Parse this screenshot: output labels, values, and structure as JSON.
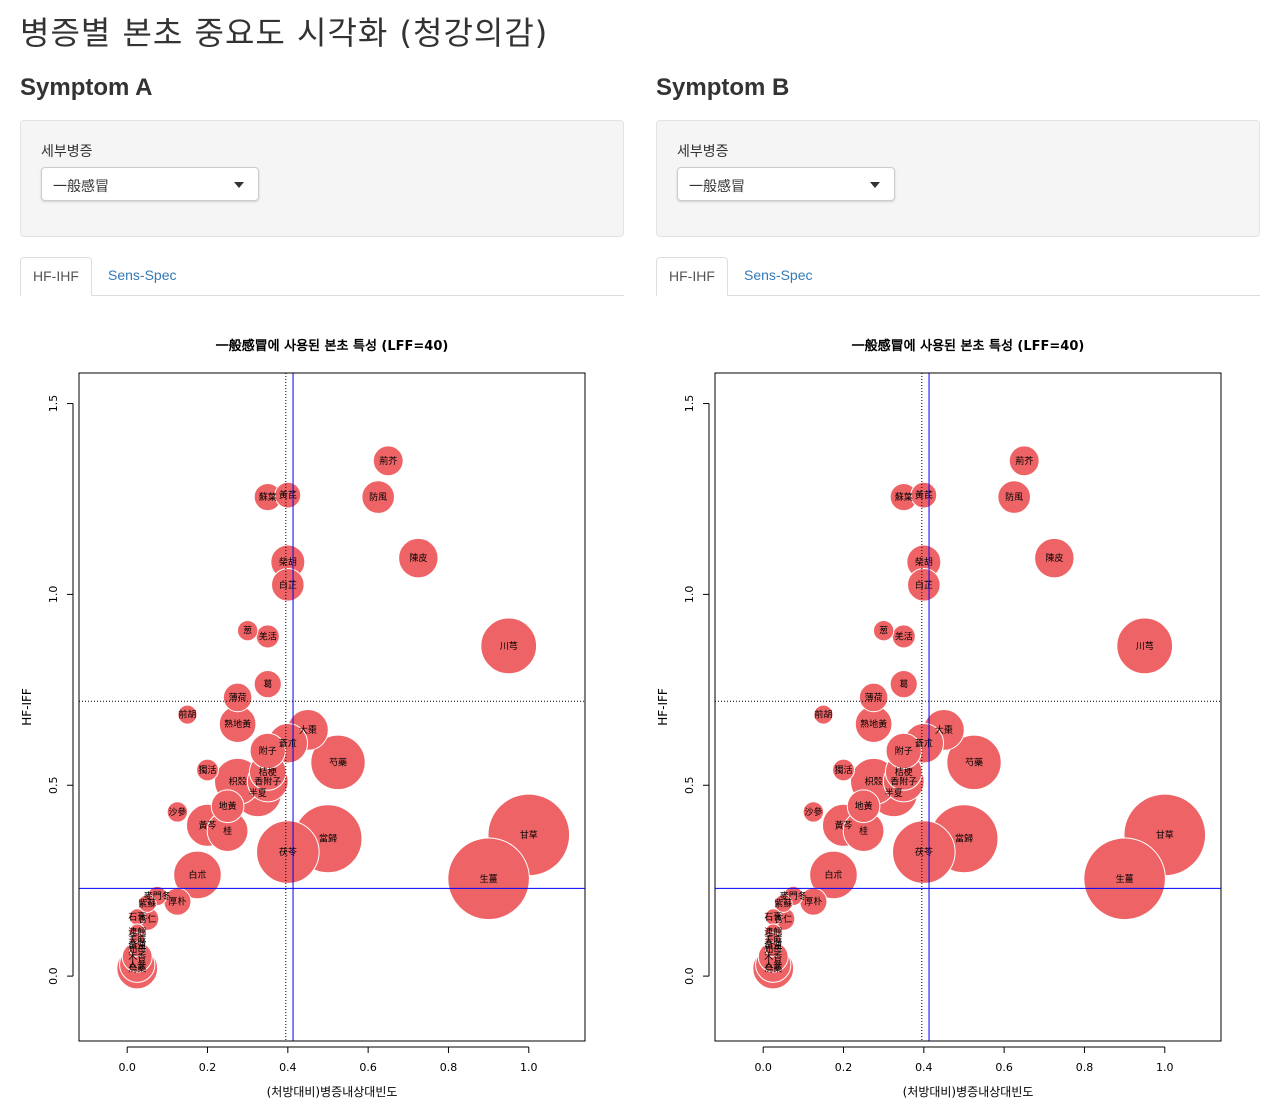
{
  "title": "병증별 본초 중요도 시각화 (청강의감)",
  "colors": {
    "bubble": "#ee6466",
    "vline": "#0000ff",
    "tab_link": "#337ab7"
  },
  "panels": [
    {
      "heading": "Symptom A",
      "control_label": "세부병증",
      "select_value": "一般感冒",
      "tabs": [
        "HF-IHF",
        "Sens-Spec"
      ],
      "active_tab": "HF-IHF",
      "chart_data": {
        "type": "scatter",
        "title": "一般感冒에 사용된 본초 특성 (LFF=40)",
        "xlabel": "(처방대비)병증내상대빈도",
        "ylabel": "HF-IFF",
        "xlim": [
          -0.12,
          1.14
        ],
        "ylim": [
          -0.17,
          1.58
        ],
        "xticks": [
          "0.0",
          "0.2",
          "0.4",
          "0.6",
          "0.8",
          "1.0"
        ],
        "yticks": [
          "0.0",
          "0.5",
          "1.0",
          "1.5"
        ],
        "ref_lines": {
          "dotted_x": 0.395,
          "solid_x": 0.413,
          "dotted_y": 0.72,
          "solid_y": 0.23
        },
        "points": [
          {
            "label": "荊芥",
            "x": 0.65,
            "y": 1.35,
            "size": 0.22
          },
          {
            "label": "防風",
            "x": 0.625,
            "y": 1.255,
            "size": 0.24
          },
          {
            "label": "蘇葉",
            "x": 0.35,
            "y": 1.255,
            "size": 0.2
          },
          {
            "label": "黃芪",
            "x": 0.4,
            "y": 1.26,
            "size": 0.19
          },
          {
            "label": "陳皮",
            "x": 0.725,
            "y": 1.095,
            "size": 0.29
          },
          {
            "label": "柴胡",
            "x": 0.4,
            "y": 1.085,
            "size": 0.25
          },
          {
            "label": "白芷",
            "x": 0.4,
            "y": 1.025,
            "size": 0.24
          },
          {
            "label": "川芎",
            "x": 0.95,
            "y": 0.865,
            "size": 0.41
          },
          {
            "label": "葱",
            "x": 0.3,
            "y": 0.905,
            "size": 0.15
          },
          {
            "label": "羌活",
            "x": 0.35,
            "y": 0.89,
            "size": 0.17
          },
          {
            "label": "葛",
            "x": 0.35,
            "y": 0.765,
            "size": 0.2
          },
          {
            "label": "薄荷",
            "x": 0.275,
            "y": 0.73,
            "size": 0.21
          },
          {
            "label": "前胡",
            "x": 0.15,
            "y": 0.685,
            "size": 0.14
          },
          {
            "label": "熟地黃",
            "x": 0.275,
            "y": 0.66,
            "size": 0.27
          },
          {
            "label": "大棗",
            "x": 0.45,
            "y": 0.645,
            "size": 0.3
          },
          {
            "label": "蒼朮",
            "x": 0.4,
            "y": 0.61,
            "size": 0.29
          },
          {
            "label": "附子",
            "x": 0.35,
            "y": 0.59,
            "size": 0.26
          },
          {
            "label": "芍藥",
            "x": 0.525,
            "y": 0.56,
            "size": 0.4
          },
          {
            "label": "獨活",
            "x": 0.2,
            "y": 0.54,
            "size": 0.16
          },
          {
            "label": "桔梗",
            "x": 0.35,
            "y": 0.535,
            "size": 0.27
          },
          {
            "label": "枳殼",
            "x": 0.275,
            "y": 0.51,
            "size": 0.34
          },
          {
            "label": "香附子",
            "x": 0.35,
            "y": 0.51,
            "size": 0.3
          },
          {
            "label": "半夏",
            "x": 0.325,
            "y": 0.48,
            "size": 0.35
          },
          {
            "label": "地黃",
            "x": 0.25,
            "y": 0.445,
            "size": 0.24
          },
          {
            "label": "沙參",
            "x": 0.125,
            "y": 0.43,
            "size": 0.15
          },
          {
            "label": "黃芩",
            "x": 0.2,
            "y": 0.395,
            "size": 0.31
          },
          {
            "label": "桂",
            "x": 0.25,
            "y": 0.38,
            "size": 0.3
          },
          {
            "label": "當歸",
            "x": 0.5,
            "y": 0.36,
            "size": 0.5
          },
          {
            "label": "茯苓",
            "x": 0.4,
            "y": 0.325,
            "size": 0.46
          },
          {
            "label": "甘草",
            "x": 1.0,
            "y": 0.37,
            "size": 0.6
          },
          {
            "label": "生薑",
            "x": 0.9,
            "y": 0.255,
            "size": 0.6
          },
          {
            "label": "白朮",
            "x": 0.175,
            "y": 0.265,
            "size": 0.35
          },
          {
            "label": "厚朴",
            "x": 0.125,
            "y": 0.195,
            "size": 0.2
          },
          {
            "label": "麥門冬",
            "x": 0.075,
            "y": 0.21,
            "size": 0.14
          },
          {
            "label": "紫蘇",
            "x": 0.05,
            "y": 0.19,
            "size": 0.13
          },
          {
            "label": "石膏",
            "x": 0.025,
            "y": 0.155,
            "size": 0.12
          },
          {
            "label": "杏仁",
            "x": 0.05,
            "y": 0.15,
            "size": 0.17
          },
          {
            "label": "連翹",
            "x": 0.025,
            "y": 0.115,
            "size": 0.12
          },
          {
            "label": "天麻",
            "x": 0.025,
            "y": 0.095,
            "size": 0.11
          },
          {
            "label": "黃連",
            "x": 0.025,
            "y": 0.08,
            "size": 0.12
          },
          {
            "label": "知母",
            "x": 0.025,
            "y": 0.07,
            "size": 0.11
          },
          {
            "label": "木香",
            "x": 0.025,
            "y": 0.05,
            "size": 0.22
          },
          {
            "label": "人參",
            "x": 0.025,
            "y": 0.03,
            "size": 0.26
          },
          {
            "label": "烏藥",
            "x": 0.025,
            "y": 0.02,
            "size": 0.3
          }
        ]
      }
    },
    {
      "heading": "Symptom B",
      "control_label": "세부병증",
      "select_value": "一般感冒",
      "tabs": [
        "HF-IHF",
        "Sens-Spec"
      ],
      "active_tab": "HF-IHF",
      "chart_data": {
        "type": "scatter",
        "title": "一般感冒에 사용된 본초 특성 (LFF=40)",
        "xlabel": "(처방대비)병증내상대빈도",
        "ylabel": "HF-IFF",
        "xlim": [
          -0.12,
          1.14
        ],
        "ylim": [
          -0.17,
          1.58
        ],
        "xticks": [
          "0.0",
          "0.2",
          "0.4",
          "0.6",
          "0.8",
          "1.0"
        ],
        "yticks": [
          "0.0",
          "0.5",
          "1.0",
          "1.5"
        ],
        "ref_lines": {
          "dotted_x": 0.395,
          "solid_x": 0.413,
          "dotted_y": 0.72,
          "solid_y": 0.23
        },
        "points": [
          {
            "label": "荊芥",
            "x": 0.65,
            "y": 1.35,
            "size": 0.22
          },
          {
            "label": "防風",
            "x": 0.625,
            "y": 1.255,
            "size": 0.24
          },
          {
            "label": "蘇葉",
            "x": 0.35,
            "y": 1.255,
            "size": 0.2
          },
          {
            "label": "黃芪",
            "x": 0.4,
            "y": 1.26,
            "size": 0.19
          },
          {
            "label": "陳皮",
            "x": 0.725,
            "y": 1.095,
            "size": 0.29
          },
          {
            "label": "柴胡",
            "x": 0.4,
            "y": 1.085,
            "size": 0.25
          },
          {
            "label": "白芷",
            "x": 0.4,
            "y": 1.025,
            "size": 0.24
          },
          {
            "label": "川芎",
            "x": 0.95,
            "y": 0.865,
            "size": 0.41
          },
          {
            "label": "葱",
            "x": 0.3,
            "y": 0.905,
            "size": 0.15
          },
          {
            "label": "羌活",
            "x": 0.35,
            "y": 0.89,
            "size": 0.17
          },
          {
            "label": "葛",
            "x": 0.35,
            "y": 0.765,
            "size": 0.2
          },
          {
            "label": "薄荷",
            "x": 0.275,
            "y": 0.73,
            "size": 0.21
          },
          {
            "label": "前胡",
            "x": 0.15,
            "y": 0.685,
            "size": 0.14
          },
          {
            "label": "熟地黃",
            "x": 0.275,
            "y": 0.66,
            "size": 0.27
          },
          {
            "label": "大棗",
            "x": 0.45,
            "y": 0.645,
            "size": 0.3
          },
          {
            "label": "蒼朮",
            "x": 0.4,
            "y": 0.61,
            "size": 0.29
          },
          {
            "label": "附子",
            "x": 0.35,
            "y": 0.59,
            "size": 0.26
          },
          {
            "label": "芍藥",
            "x": 0.525,
            "y": 0.56,
            "size": 0.4
          },
          {
            "label": "獨活",
            "x": 0.2,
            "y": 0.54,
            "size": 0.16
          },
          {
            "label": "桔梗",
            "x": 0.35,
            "y": 0.535,
            "size": 0.27
          },
          {
            "label": "枳殼",
            "x": 0.275,
            "y": 0.51,
            "size": 0.34
          },
          {
            "label": "香附子",
            "x": 0.35,
            "y": 0.51,
            "size": 0.3
          },
          {
            "label": "半夏",
            "x": 0.325,
            "y": 0.48,
            "size": 0.35
          },
          {
            "label": "地黃",
            "x": 0.25,
            "y": 0.445,
            "size": 0.24
          },
          {
            "label": "沙參",
            "x": 0.125,
            "y": 0.43,
            "size": 0.15
          },
          {
            "label": "黃芩",
            "x": 0.2,
            "y": 0.395,
            "size": 0.31
          },
          {
            "label": "桂",
            "x": 0.25,
            "y": 0.38,
            "size": 0.3
          },
          {
            "label": "當歸",
            "x": 0.5,
            "y": 0.36,
            "size": 0.5
          },
          {
            "label": "茯苓",
            "x": 0.4,
            "y": 0.325,
            "size": 0.46
          },
          {
            "label": "甘草",
            "x": 1.0,
            "y": 0.37,
            "size": 0.6
          },
          {
            "label": "生薑",
            "x": 0.9,
            "y": 0.255,
            "size": 0.6
          },
          {
            "label": "白朮",
            "x": 0.175,
            "y": 0.265,
            "size": 0.35
          },
          {
            "label": "厚朴",
            "x": 0.125,
            "y": 0.195,
            "size": 0.2
          },
          {
            "label": "麥門冬",
            "x": 0.075,
            "y": 0.21,
            "size": 0.14
          },
          {
            "label": "紫蘇",
            "x": 0.05,
            "y": 0.19,
            "size": 0.13
          },
          {
            "label": "石膏",
            "x": 0.025,
            "y": 0.155,
            "size": 0.12
          },
          {
            "label": "杏仁",
            "x": 0.05,
            "y": 0.15,
            "size": 0.17
          },
          {
            "label": "連翹",
            "x": 0.025,
            "y": 0.115,
            "size": 0.12
          },
          {
            "label": "天麻",
            "x": 0.025,
            "y": 0.095,
            "size": 0.11
          },
          {
            "label": "黃連",
            "x": 0.025,
            "y": 0.08,
            "size": 0.12
          },
          {
            "label": "知母",
            "x": 0.025,
            "y": 0.07,
            "size": 0.11
          },
          {
            "label": "木香",
            "x": 0.025,
            "y": 0.05,
            "size": 0.22
          },
          {
            "label": "人參",
            "x": 0.025,
            "y": 0.03,
            "size": 0.26
          },
          {
            "label": "烏藥",
            "x": 0.025,
            "y": 0.02,
            "size": 0.3
          }
        ]
      }
    }
  ]
}
